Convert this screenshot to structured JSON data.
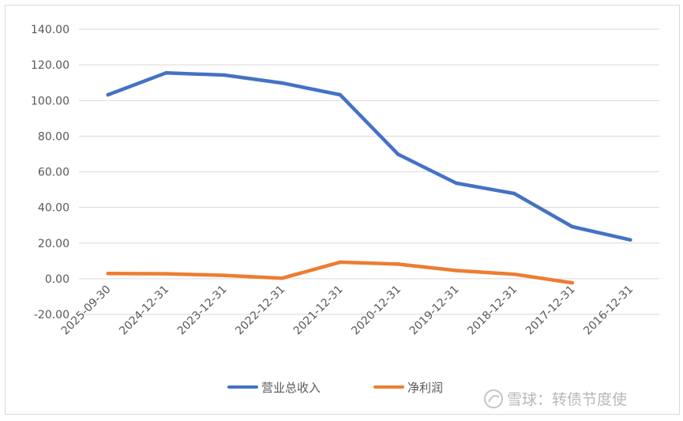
{
  "chart_data": {
    "type": "line",
    "title": "",
    "xlabel": "",
    "ylabel": "",
    "categories": [
      "2025-09-30",
      "2024-12-31",
      "2023-12-31",
      "2022-12-31",
      "2021-12-31",
      "2020-12-31",
      "2019-12-31",
      "2018-12-31",
      "2017-12-31",
      "2016-12-31"
    ],
    "y_ticks": [
      "-20.00",
      "0.00",
      "20.00",
      "40.00",
      "60.00",
      "80.00",
      "100.00",
      "120.00",
      "140.00"
    ],
    "ylim": [
      -20,
      140
    ],
    "grid": true,
    "legend_position": "bottom",
    "series": [
      {
        "name": "营业总收入",
        "color": "#4472c4",
        "values": [
          103.2,
          115.5,
          114.3,
          109.8,
          103.2,
          69.8,
          53.6,
          47.8,
          29.2,
          21.8
        ]
      },
      {
        "name": "净利润",
        "color": "#ed7d31",
        "values": [
          2.9,
          2.8,
          1.9,
          0.3,
          9.3,
          8.2,
          4.6,
          2.5,
          -2.3,
          null
        ]
      }
    ]
  },
  "watermark": {
    "text": "雪球：转债节度使",
    "icon": "snowball-logo-icon"
  }
}
